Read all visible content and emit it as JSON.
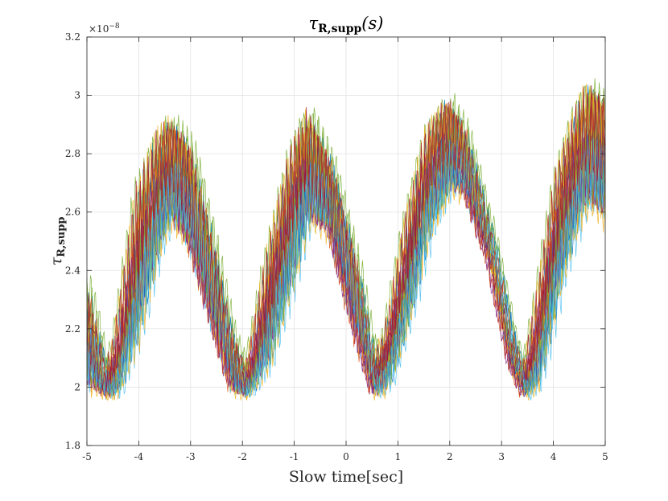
{
  "chart_data": {
    "type": "line",
    "title": "τR,supp(s)",
    "title_main": "τ",
    "title_sub": "R,supp",
    "title_arg": "(s)",
    "xlabel": "Slow time[sec]",
    "ylabel": "τR,supp",
    "ylabel_main": "τ",
    "ylabel_sub": "R,supp",
    "y_exponent_label": "×10",
    "y_exponent_power": "−8",
    "xlim": [
      -5,
      5
    ],
    "ylim": [
      1.8,
      3.2
    ],
    "x_ticks": [
      "-5",
      "-4",
      "-3",
      "-2",
      "-1",
      "0",
      "1",
      "2",
      "3",
      "4",
      "5"
    ],
    "y_ticks": [
      "1.8",
      "2",
      "2.2",
      "2.4",
      "2.6",
      "2.8",
      "3",
      "3.2"
    ],
    "grid": true,
    "legend": "none",
    "series_count": 7,
    "series_colors": [
      "#0072BD",
      "#D95319",
      "#EDB120",
      "#7E2F8E",
      "#77AC30",
      "#4DBEEE",
      "#A2142F"
    ],
    "envelope": {
      "x": [
        -5,
        -4.6,
        -4.4,
        -4.0,
        -3.6,
        -3.35,
        -3.0,
        -2.6,
        -2.2,
        -1.9,
        -1.5,
        -1.0,
        -0.7,
        -0.3,
        0.2,
        0.55,
        0.8,
        1.2,
        1.6,
        2.0,
        2.3,
        2.8,
        3.2,
        3.45,
        3.7,
        4.1,
        4.5,
        4.7,
        5.0
      ],
      "upper": [
        2.38,
        2.05,
        2.2,
        2.7,
        2.88,
        2.93,
        2.85,
        2.55,
        2.2,
        2.05,
        2.45,
        2.85,
        2.96,
        2.8,
        2.45,
        2.1,
        2.2,
        2.6,
        2.9,
        3.0,
        2.9,
        2.55,
        2.2,
        2.05,
        2.3,
        2.75,
        2.98,
        3.05,
        3.0
      ],
      "lower": [
        1.98,
        1.96,
        1.96,
        2.15,
        2.45,
        2.55,
        2.45,
        2.2,
        1.97,
        1.96,
        2.05,
        2.35,
        2.55,
        2.5,
        2.15,
        1.96,
        1.98,
        2.2,
        2.5,
        2.65,
        2.65,
        2.4,
        2.05,
        1.96,
        1.98,
        2.3,
        2.55,
        2.6,
        2.55
      ]
    }
  }
}
